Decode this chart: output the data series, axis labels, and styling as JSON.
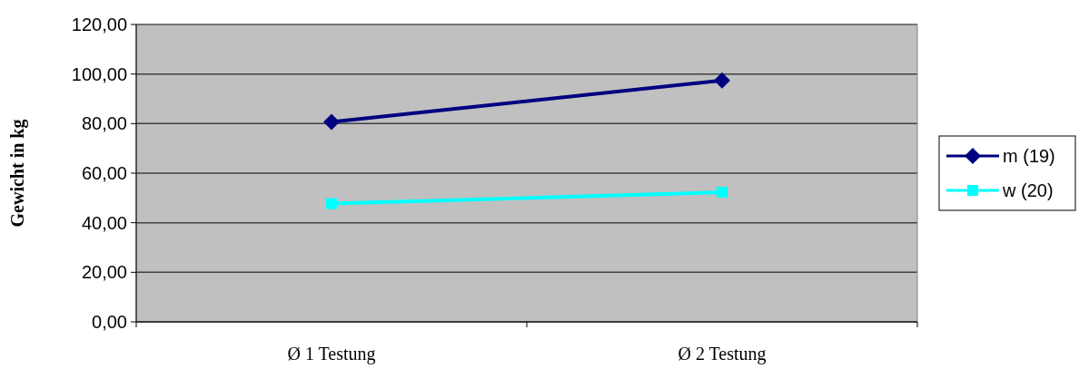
{
  "chart_data": {
    "type": "line",
    "ylabel": "Gewicht in kg",
    "categories": [
      "Ø 1 Testung",
      "Ø 2 Testung"
    ],
    "series": [
      {
        "name": "m (19)",
        "color": "#000080",
        "values": [
          80.7,
          97.4
        ],
        "marker": "diamond"
      },
      {
        "name": "w (20)",
        "color": "#00ffff",
        "values": [
          47.7,
          52.3
        ],
        "marker": "square"
      }
    ],
    "ylim": [
      0,
      120
    ],
    "yticks": [
      {
        "value": 0,
        "label": "0,00"
      },
      {
        "value": 20,
        "label": "20,00"
      },
      {
        "value": 40,
        "label": "40,00"
      },
      {
        "value": 60,
        "label": "60,00"
      },
      {
        "value": 80,
        "label": "80,00"
      },
      {
        "value": 100,
        "label": "100,00"
      },
      {
        "value": 120,
        "label": "120,00"
      }
    ],
    "grid": "y",
    "legend": "right"
  }
}
